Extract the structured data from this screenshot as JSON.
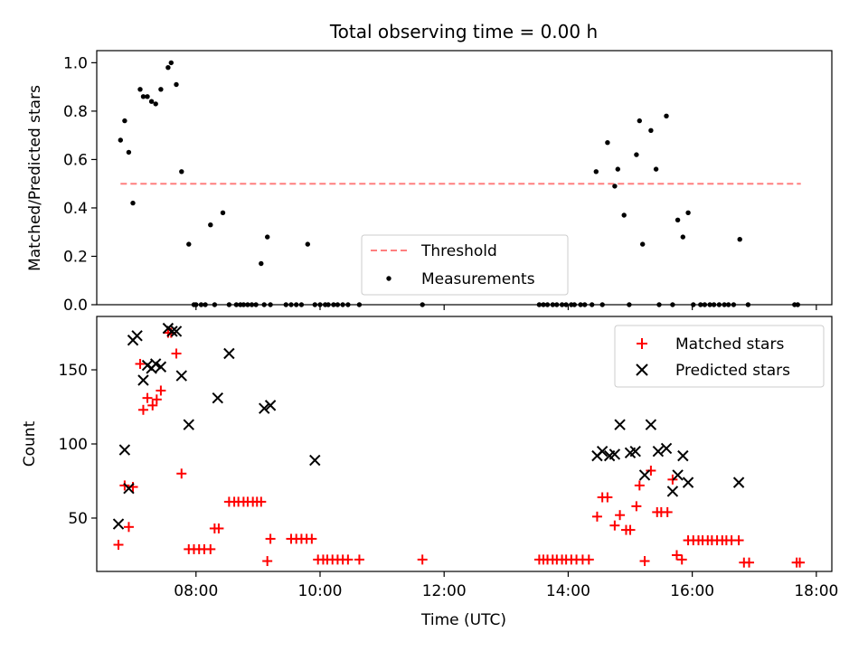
{
  "figure": {
    "title": "Total observing time = 0.00 h"
  },
  "chart_data": [
    {
      "type": "scatter",
      "panel": "top",
      "ylabel": "Matched/Predicted stars",
      "xlabel": "",
      "xlim": [
        "06:24",
        "18:15"
      ],
      "ylim": [
        0.0,
        1.05
      ],
      "yticks": [
        0.0,
        0.2,
        0.4,
        0.6,
        0.8,
        1.0
      ],
      "ytick_labels": [
        "0.0",
        "0.2",
        "0.4",
        "0.6",
        "0.8",
        "1.0"
      ],
      "grid": false,
      "legend": {
        "placement": "lower-center",
        "entries": [
          "Threshold",
          "Measurements"
        ]
      },
      "series": [
        {
          "name": "Threshold",
          "kind": "dashed-line",
          "color": "#ff7f7f",
          "x": [
            "06:47",
            "17:45"
          ],
          "y": [
            0.5,
            0.5
          ]
        },
        {
          "name": "Measurements",
          "kind": "points",
          "color": "#000000",
          "x": [
            "06:47",
            "06:51",
            "06:55",
            "06:59",
            "07:06",
            "07:09",
            "07:13",
            "07:17",
            "07:21",
            "07:26",
            "07:33",
            "07:36",
            "07:41",
            "07:46",
            "07:53",
            "07:58",
            "08:00",
            "08:05",
            "08:09",
            "08:14",
            "08:18",
            "08:26",
            "08:32",
            "08:39",
            "08:43",
            "08:46",
            "08:50",
            "08:54",
            "08:58",
            "09:03",
            "09:06",
            "09:09",
            "09:12",
            "09:27",
            "09:32",
            "09:37",
            "09:42",
            "09:48",
            "09:55",
            "10:00",
            "10:05",
            "10:08",
            "10:13",
            "10:17",
            "10:22",
            "10:27",
            "10:38",
            "11:39",
            "13:32",
            "13:36",
            "13:40",
            "13:45",
            "13:49",
            "13:54",
            "13:58",
            "14:03",
            "14:06",
            "14:12",
            "14:16",
            "14:23",
            "14:27",
            "14:33",
            "14:38",
            "14:45",
            "14:48",
            "14:54",
            "14:59",
            "15:06",
            "15:09",
            "15:12",
            "15:20",
            "15:25",
            "15:28",
            "15:35",
            "15:41",
            "15:46",
            "15:51",
            "15:56",
            "16:01",
            "16:08",
            "16:12",
            "16:17",
            "16:21",
            "16:26",
            "16:31",
            "16:35",
            "16:40",
            "16:46",
            "16:54",
            "17:39",
            "17:42"
          ],
          "y": [
            0.68,
            0.76,
            0.63,
            0.42,
            0.89,
            0.86,
            0.86,
            0.84,
            0.83,
            0.89,
            0.98,
            1.0,
            0.91,
            0.55,
            0.25,
            0.0,
            0.0,
            0.0,
            0.0,
            0.33,
            0.0,
            0.38,
            0.0,
            0.0,
            0.0,
            0.0,
            0.0,
            0.0,
            0.0,
            0.17,
            0.0,
            0.28,
            0.0,
            0.0,
            0.0,
            0.0,
            0.0,
            0.25,
            0.0,
            0.0,
            0.0,
            0.0,
            0.0,
            0.0,
            0.0,
            0.0,
            0.0,
            0.0,
            0.0,
            0.0,
            0.0,
            0.0,
            0.0,
            0.0,
            0.0,
            0.0,
            0.0,
            0.0,
            0.0,
            0.0,
            0.55,
            0.0,
            0.67,
            0.49,
            0.56,
            0.37,
            0.0,
            0.62,
            0.76,
            0.25,
            0.72,
            0.56,
            0.0,
            0.78,
            0.0,
            0.35,
            0.28,
            0.38,
            0.0,
            0.0,
            0.0,
            0.0,
            0.0,
            0.0,
            0.0,
            0.0,
            0.0,
            0.27,
            0.0,
            0.0,
            0.0
          ]
        }
      ]
    },
    {
      "type": "scatter",
      "panel": "bottom",
      "ylabel": "Count",
      "xlabel": "Time (UTC)",
      "xlim": [
        "06:24",
        "18:15"
      ],
      "ylim": [
        14,
        186
      ],
      "yticks": [
        50,
        100,
        150
      ],
      "ytick_labels": [
        "50",
        "100",
        "150"
      ],
      "xticks": [
        "08:00",
        "10:00",
        "12:00",
        "14:00",
        "16:00",
        "18:00"
      ],
      "xtick_labels": [
        "08:00",
        "10:00",
        "12:00",
        "14:00",
        "16:00",
        "18:00"
      ],
      "grid": false,
      "legend": {
        "placement": "upper-right",
        "entries": [
          "Matched stars",
          "Predicted stars"
        ]
      },
      "series": [
        {
          "name": "Matched stars",
          "marker": "plus",
          "color": "#ff0000",
          "x": [
            "06:45",
            "06:51",
            "06:55",
            "06:59",
            "07:06",
            "07:09",
            "07:13",
            "07:18",
            "07:22",
            "07:26",
            "07:33",
            "07:36",
            "07:41",
            "07:46",
            "07:53",
            "07:58",
            "08:03",
            "08:08",
            "08:14",
            "08:18",
            "08:22",
            "08:32",
            "08:37",
            "08:41",
            "08:46",
            "08:50",
            "08:55",
            "08:59",
            "09:03",
            "09:09",
            "09:12",
            "09:32",
            "09:37",
            "09:42",
            "09:47",
            "09:52",
            "09:58",
            "10:03",
            "10:07",
            "10:12",
            "10:17",
            "10:22",
            "10:27",
            "10:38",
            "11:39",
            "13:32",
            "13:36",
            "13:40",
            "13:45",
            "13:49",
            "13:54",
            "13:58",
            "14:03",
            "14:08",
            "14:14",
            "14:20",
            "14:28",
            "14:33",
            "14:38",
            "14:45",
            "14:50",
            "14:56",
            "15:00",
            "15:06",
            "15:09",
            "15:14",
            "15:20",
            "15:26",
            "15:30",
            "15:36",
            "15:41",
            "15:45",
            "15:50",
            "15:56",
            "16:01",
            "16:06",
            "16:10",
            "16:15",
            "16:19",
            "16:24",
            "16:29",
            "16:33",
            "16:38",
            "16:45",
            "16:50",
            "16:55",
            "17:41",
            "17:44"
          ],
          "y": [
            32,
            72,
            44,
            71,
            154,
            123,
            131,
            126,
            130,
            136,
            175,
            175,
            161,
            80,
            29,
            29,
            29,
            29,
            29,
            43,
            43,
            61,
            61,
            61,
            61,
            61,
            61,
            61,
            61,
            21,
            36,
            36,
            36,
            36,
            36,
            36,
            22,
            22,
            22,
            22,
            22,
            22,
            22,
            22,
            22,
            22,
            22,
            22,
            22,
            22,
            22,
            22,
            22,
            22,
            22,
            22,
            51,
            64,
            64,
            45,
            52,
            42,
            42,
            58,
            72,
            21,
            82,
            54,
            54,
            54,
            76,
            25,
            22,
            35,
            35,
            35,
            35,
            35,
            35,
            35,
            35,
            35,
            35,
            35,
            20,
            20,
            20,
            20
          ]
        },
        {
          "name": "Predicted stars",
          "marker": "x",
          "color": "#000000",
          "x": [
            "06:45",
            "06:51",
            "06:55",
            "06:59",
            "07:03",
            "07:09",
            "07:13",
            "07:17",
            "07:21",
            "07:26",
            "07:33",
            "07:37",
            "07:41",
            "07:46",
            "07:53",
            "08:21",
            "08:32",
            "09:06",
            "09:12",
            "09:55",
            "14:28",
            "14:33",
            "14:40",
            "14:45",
            "14:50",
            "15:00",
            "15:05",
            "15:14",
            "15:20",
            "15:27",
            "15:35",
            "15:41",
            "15:46",
            "15:51",
            "15:56",
            "16:45"
          ],
          "y": [
            46,
            96,
            70,
            170,
            173,
            143,
            153,
            151,
            154,
            152,
            178,
            176,
            176,
            146,
            113,
            131,
            161,
            124,
            126,
            89,
            92,
            95,
            92,
            93,
            113,
            94,
            95,
            79,
            113,
            95,
            97,
            68,
            79,
            92,
            74,
            74
          ]
        }
      ]
    }
  ]
}
